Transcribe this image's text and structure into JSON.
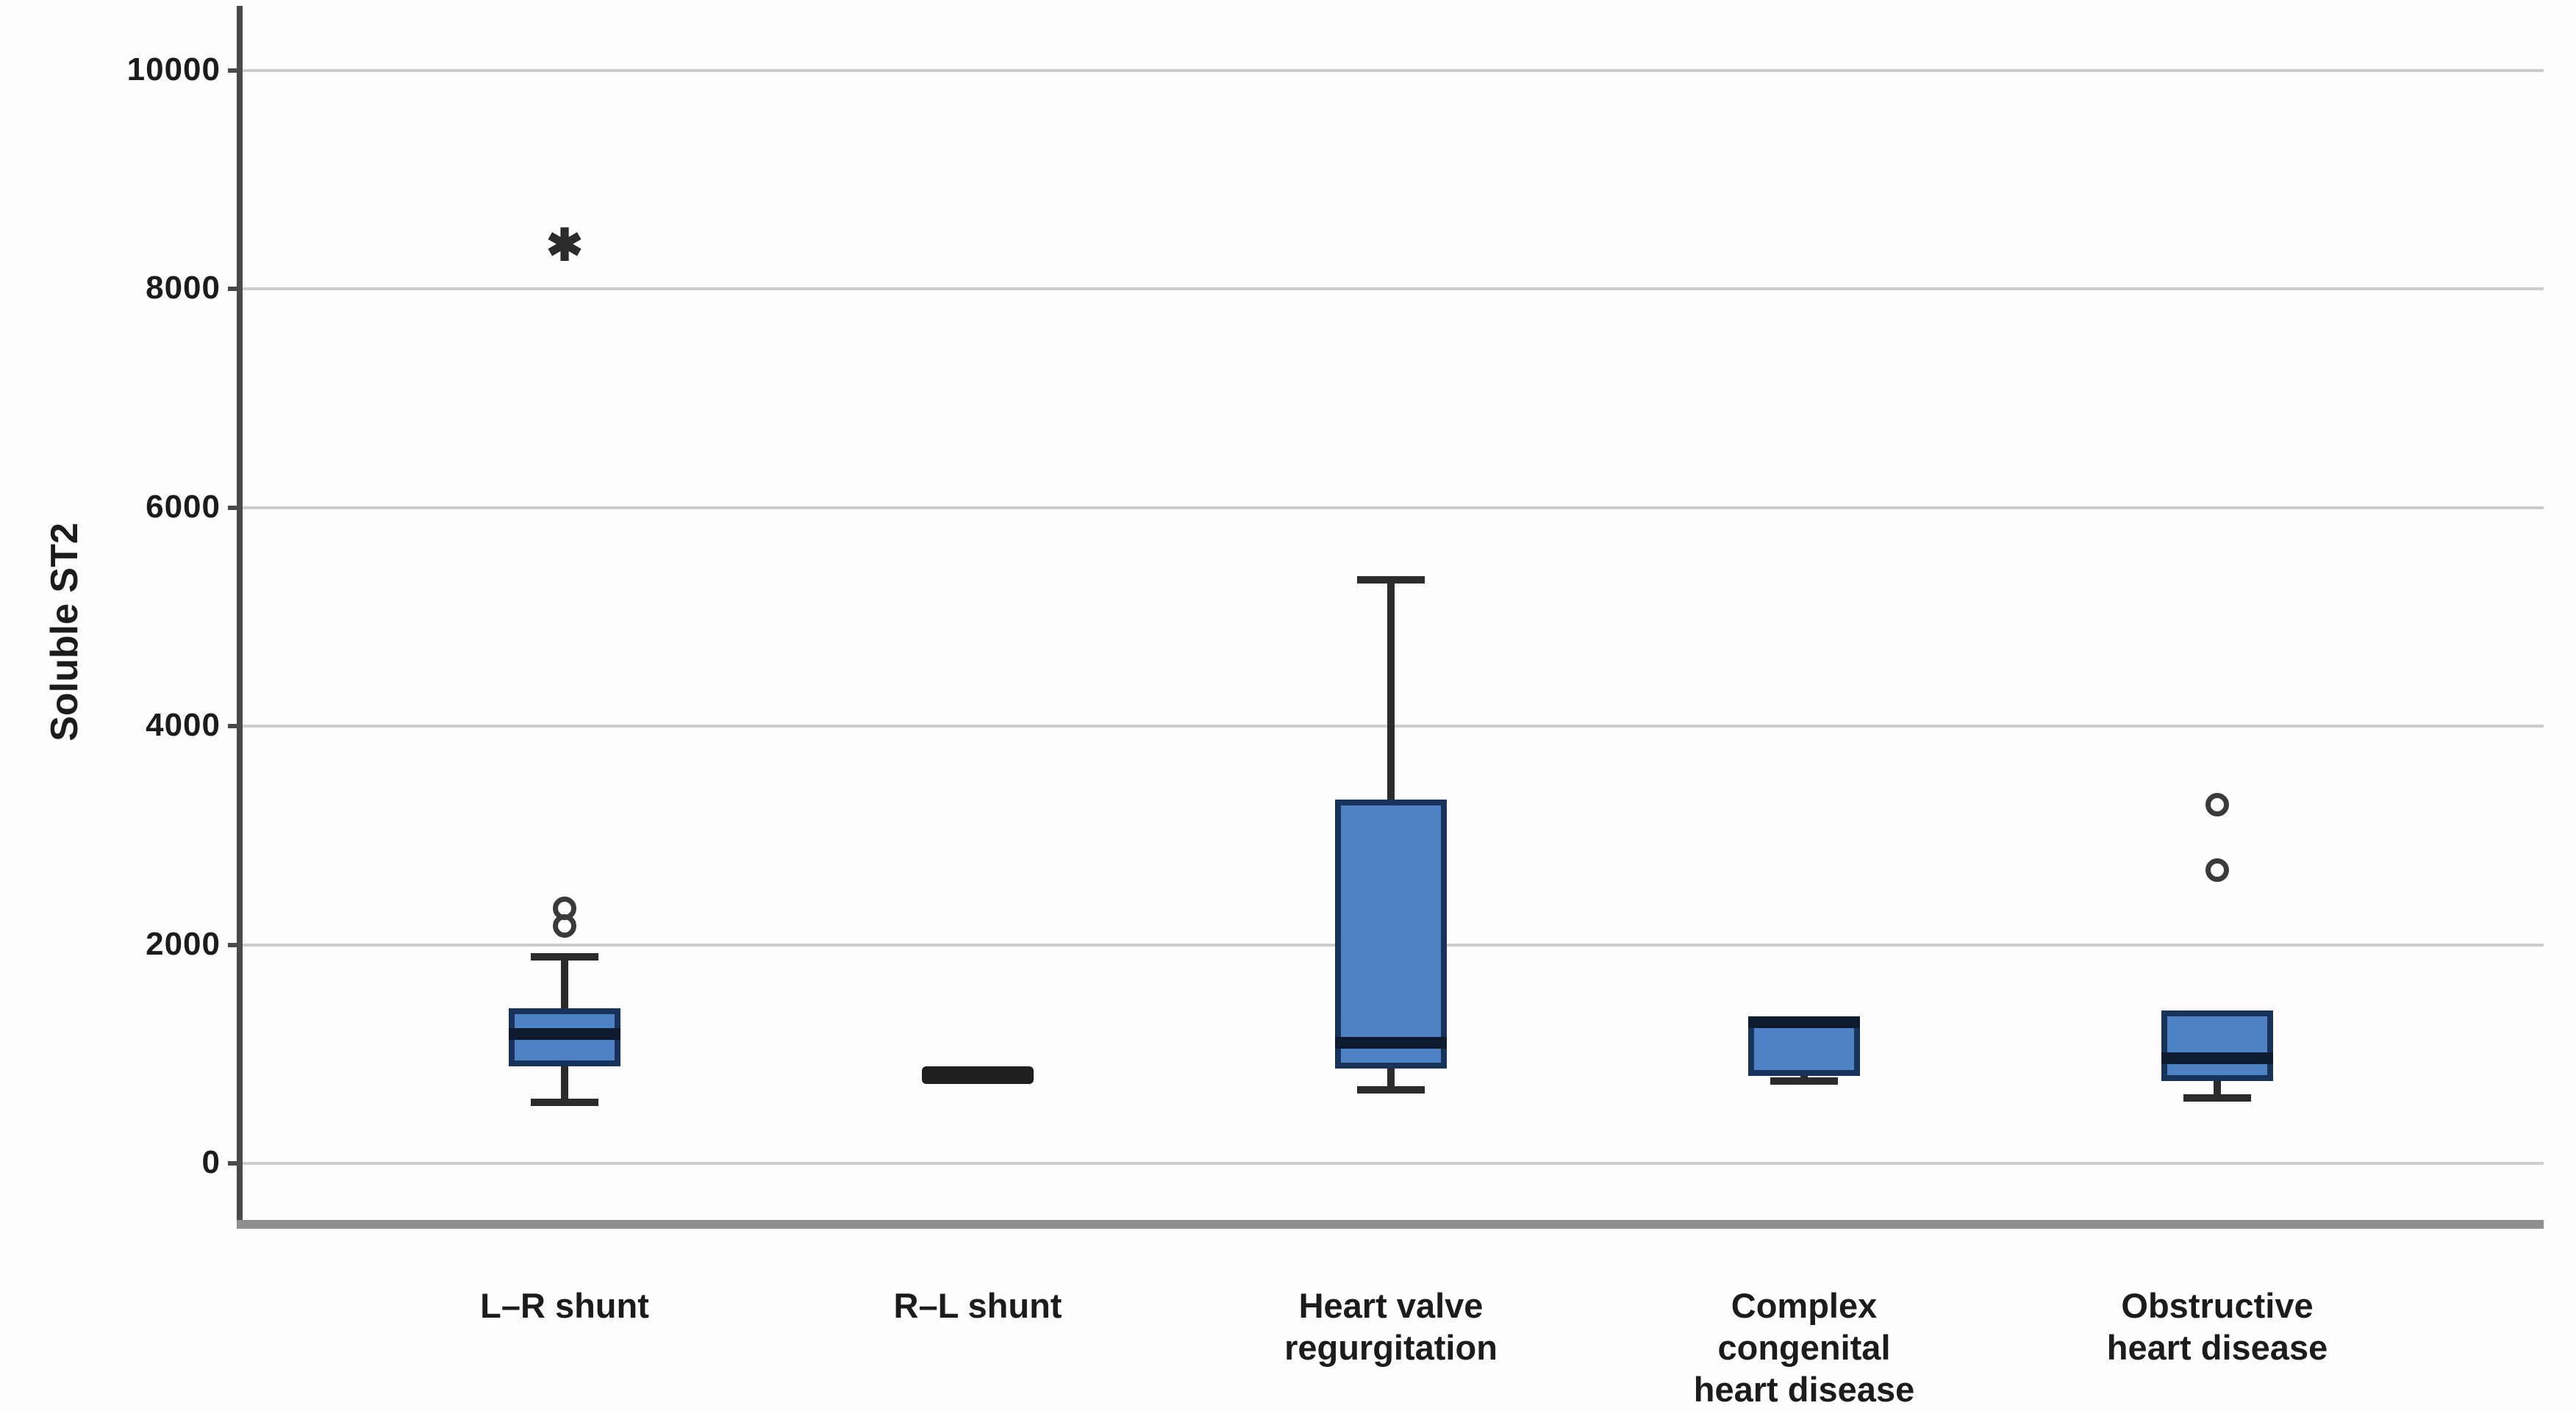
{
  "chart_data": {
    "type": "boxplot",
    "title": "",
    "xlabel": "",
    "ylabel": "Soluble ST2",
    "yticks": [
      0,
      2000,
      4000,
      6000,
      8000,
      10000
    ],
    "ylim": [
      -550,
      10600
    ],
    "grid": "horizontal",
    "legend": "none",
    "categories": [
      "L–R shunt",
      "R–L shunt",
      "Heart valve\nregurgitation",
      "Complex\ncongenital\nheart disease",
      "Obstructive\nheart disease"
    ],
    "series": [
      {
        "category": "L–R shunt",
        "whisker_low": 560,
        "q1": 890,
        "median": 1180,
        "q3": 1420,
        "whisker_high": 1890,
        "outliers_mild": [
          2170,
          2330
        ],
        "outliers_extreme": [
          8400
        ]
      },
      {
        "category": "R–L shunt",
        "whisker_low": null,
        "q1": null,
        "median": 810,
        "q3": null,
        "whisker_high": null,
        "outliers_mild": [],
        "outliers_extreme": []
      },
      {
        "category": "Heart valve\nregurgitation",
        "whisker_low": 670,
        "q1": 870,
        "median": 1100,
        "q3": 3330,
        "whisker_high": 5340,
        "outliers_mild": [],
        "outliers_extreme": []
      },
      {
        "category": "Complex\ncongenital\nheart disease",
        "whisker_low": 750,
        "q1": 800,
        "median": 1290,
        "q3": 1310,
        "whisker_high": null,
        "outliers_mild": [],
        "outliers_extreme": []
      },
      {
        "category": "Obstructive\nheart disease",
        "whisker_low": 600,
        "q1": 750,
        "median": 960,
        "q3": 1400,
        "whisker_high": null,
        "outliers_mild": [
          2680,
          3280
        ],
        "outliers_extreme": []
      }
    ],
    "colors": {
      "box_fill": "#4d82c4",
      "box_border": "#17335a",
      "median": "#0e1b2e",
      "whisker": "#2b2b2b",
      "gridline": "#cccccc",
      "axis": "#4a4a4a",
      "frame": "#8f8f8f",
      "text": "#1c1c1c",
      "outlier": "#3a3a3a"
    }
  }
}
